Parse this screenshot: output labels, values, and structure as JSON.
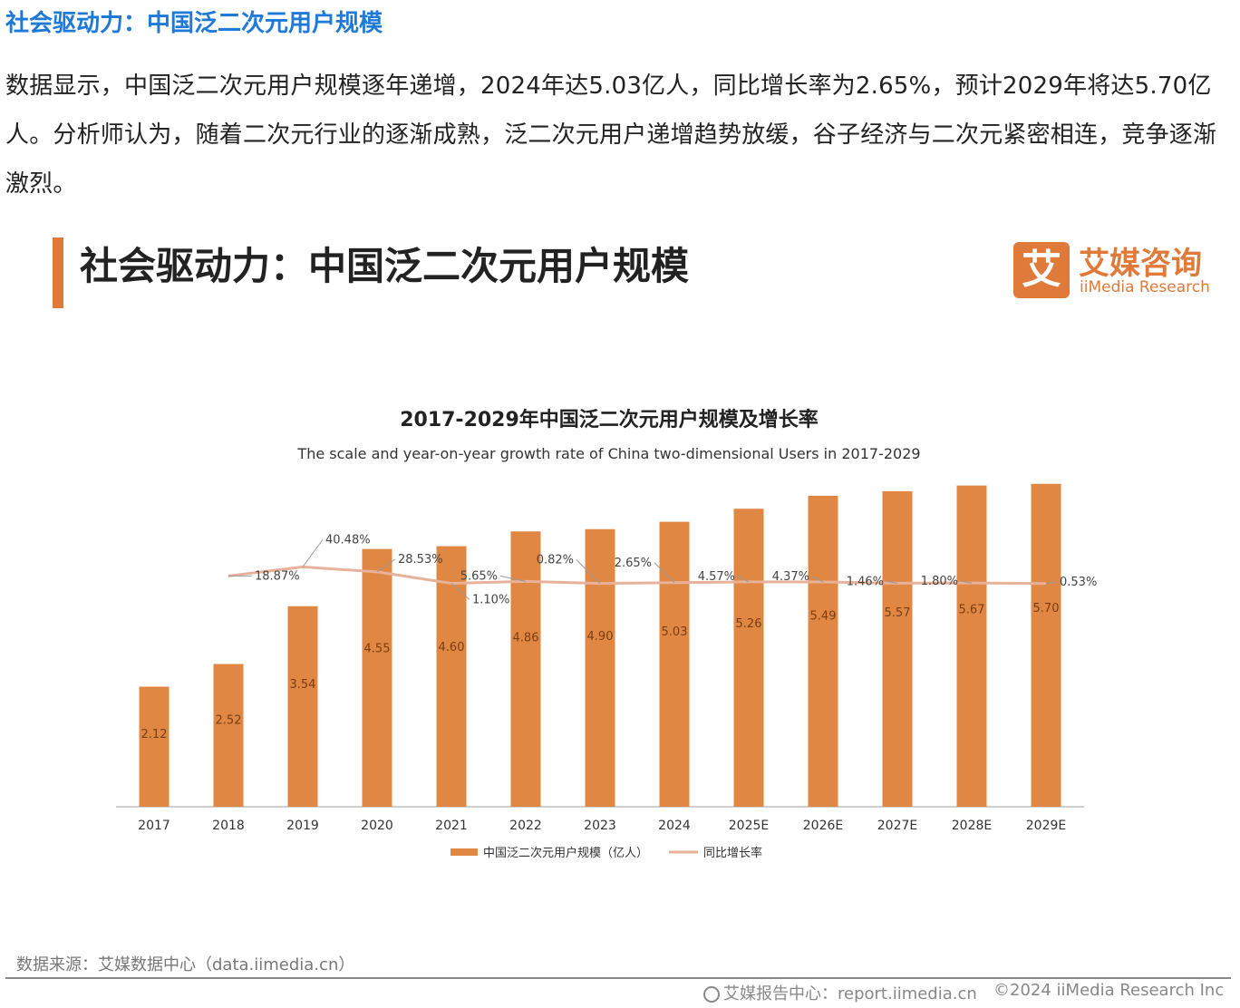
{
  "article": {
    "heading": "社会驱动力：中国泛二次元用户规模",
    "body": "数据显示，中国泛二次元用户规模逐年递增，2024年达5.03亿人，同比增长率为2.65%，预计2029年将达5.70亿人。分析师认为，随着二次元行业的逐渐成熟，泛二次元用户递增趋势放缓，谷子经济与二次元紧密相连，竞争逐渐激烈。"
  },
  "slide": {
    "title": "社会驱动力：中国泛二次元用户规模",
    "logo_mark": "艾",
    "logo_cn": "艾媒咨询",
    "logo_en": "iiMedia Research",
    "source": "数据来源：艾媒数据中心（data.iimedia.cn）",
    "footer_left": "艾媒报告中心：report.iimedia.cn",
    "footer_right": "©2024  iiMedia Research Inc"
  },
  "colors": {
    "bar": "#e08743",
    "line": "#e8b19a",
    "heading": "#1e7ad6",
    "accent": "#e07a3a"
  },
  "chart_data": {
    "type": "bar",
    "title": "2017-2029年中国泛二次元用户规模及增长率",
    "subtitle": "The scale and year-on-year growth rate of China two-dimensional Users in 2017-2029",
    "categories": [
      "2017",
      "2018",
      "2019",
      "2020",
      "2021",
      "2022",
      "2023",
      "2024",
      "2025E",
      "2026E",
      "2027E",
      "2028E",
      "2029E"
    ],
    "series": [
      {
        "name": "中国泛二次元用户规模（亿人）",
        "type": "bar",
        "values": [
          2.12,
          2.52,
          3.54,
          4.55,
          4.6,
          4.86,
          4.9,
          5.03,
          5.26,
          5.49,
          5.57,
          5.67,
          5.7
        ]
      },
      {
        "name": "同比增长率",
        "type": "line",
        "values": [
          null,
          18.87,
          40.48,
          28.53,
          1.1,
          5.65,
          0.82,
          2.65,
          4.57,
          4.37,
          1.46,
          1.8,
          0.53
        ],
        "labels": [
          null,
          "18.87%",
          "40.48%",
          "28.53%",
          "1.10%",
          "5.65%",
          "0.82%",
          "2.65%",
          "4.57%",
          "4.37%",
          "1.46%",
          "1.80%",
          "0.53%"
        ]
      }
    ],
    "legend_position": "bottom",
    "grid": false
  }
}
